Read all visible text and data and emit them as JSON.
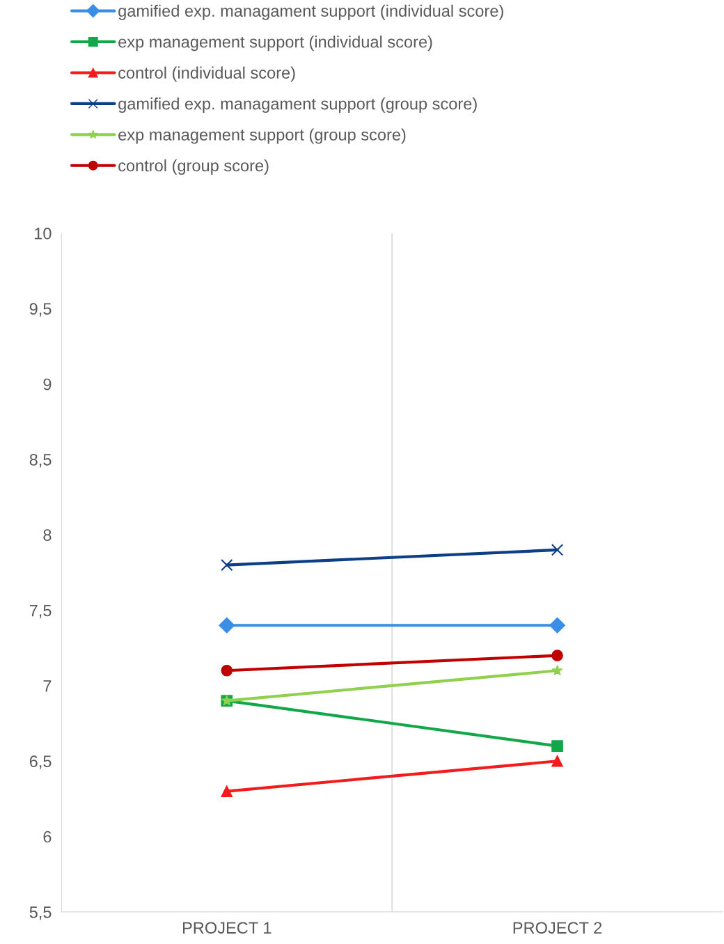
{
  "chart_data": {
    "type": "line",
    "categories": [
      "PROJECT 1",
      "PROJECT 2"
    ],
    "series": [
      {
        "name": "gamified exp. managament support (individual score)",
        "color": "#3a8ee6",
        "marker": "diamond",
        "values": [
          7.4,
          7.4
        ]
      },
      {
        "name": "exp management support (individual score)",
        "color": "#12a84a",
        "marker": "square",
        "values": [
          6.9,
          6.6
        ]
      },
      {
        "name": "control (individual score)",
        "color": "#f21c1c",
        "marker": "triangle",
        "values": [
          6.3,
          6.5
        ]
      },
      {
        "name": "gamified exp. managament support (group score)",
        "color": "#0d3f87",
        "marker": "cross",
        "values": [
          7.8,
          7.9
        ]
      },
      {
        "name": "exp management support (group score)",
        "color": "#8fd14f",
        "marker": "star",
        "values": [
          6.9,
          7.1
        ]
      },
      {
        "name": "control (group score)",
        "color": "#c00000",
        "marker": "circle",
        "values": [
          7.1,
          7.2
        ]
      }
    ],
    "ylim": [
      5.5,
      10
    ],
    "yticks": [
      {
        "value": 5.5,
        "label": "5,5"
      },
      6,
      {
        "value": 6.5,
        "label": "6,5"
      },
      7,
      {
        "value": 7.5,
        "label": "7,5"
      },
      8,
      {
        "value": 8.5,
        "label": "8,5"
      },
      9,
      {
        "value": 9.5,
        "label": "9,5"
      },
      10
    ],
    "grid": "x",
    "legend": "top",
    "line_style": "solid"
  }
}
